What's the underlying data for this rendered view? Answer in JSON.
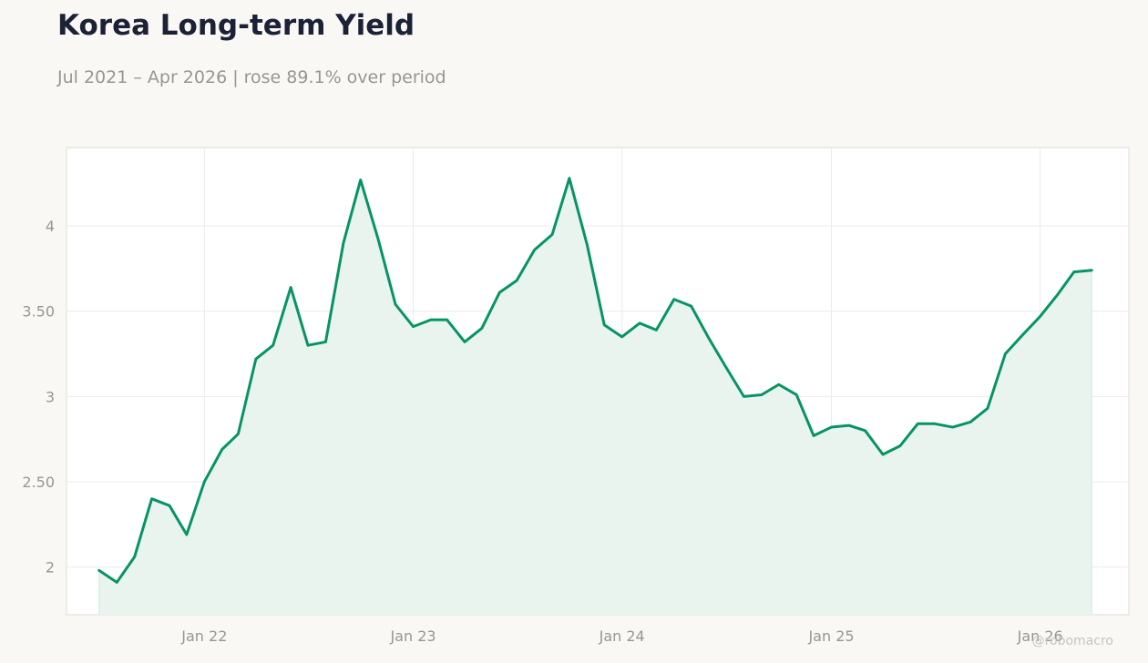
{
  "header": {
    "title": "Korea Long-term Yield",
    "subtitle": "Jul 2021 – Apr 2026 | rose 89.1% over period"
  },
  "watermark": "@robomacro",
  "colors": {
    "line": "#079465",
    "fill": "#e9f4ef",
    "grid": "#ebebeb",
    "frame": "#dddbd6",
    "background": "#f9f8f5",
    "plot_background": "#ffffff"
  },
  "chart_data": {
    "type": "area",
    "title": "Korea Long-term Yield",
    "subtitle": "Jul 2021 – Apr 2026 | rose 89.1% over period",
    "xlabel": "",
    "ylabel": "",
    "grid": true,
    "xlim": [
      "2021-05-05",
      "2026-06-05"
    ],
    "ylim": [
      1.72,
      4.46
    ],
    "x_ticks": [
      {
        "date": "2022-01-01",
        "label": "Jan 22"
      },
      {
        "date": "2023-01-01",
        "label": "Jan 23"
      },
      {
        "date": "2024-01-01",
        "label": "Jan 24"
      },
      {
        "date": "2025-01-01",
        "label": "Jan 25"
      },
      {
        "date": "2026-01-01",
        "label": "Jan 26"
      }
    ],
    "y_ticks": [
      {
        "value": 2,
        "label": "2"
      },
      {
        "value": 2.5,
        "label": "2.50"
      },
      {
        "value": 3,
        "label": "3"
      },
      {
        "value": 3.5,
        "label": "3.50"
      },
      {
        "value": 4,
        "label": "4"
      }
    ],
    "series": [
      {
        "x": [
          "2021-07",
          "2021-08",
          "2021-09",
          "2021-10",
          "2021-11",
          "2021-12",
          "2022-01",
          "2022-02",
          "2022-03",
          "2022-04",
          "2022-05",
          "2022-06",
          "2022-07",
          "2022-08",
          "2022-09",
          "2022-10",
          "2022-11",
          "2022-12",
          "2023-01",
          "2023-02",
          "2023-03",
          "2023-04",
          "2023-05",
          "2023-06",
          "2023-07",
          "2023-08",
          "2023-09",
          "2023-10",
          "2023-11",
          "2023-12",
          "2024-01",
          "2024-02",
          "2024-03",
          "2024-04",
          "2024-05",
          "2024-06",
          "2024-07",
          "2024-08",
          "2024-09",
          "2024-10",
          "2024-11",
          "2024-12",
          "2025-01",
          "2025-02",
          "2025-03",
          "2025-04",
          "2025-05",
          "2025-06",
          "2025-07",
          "2025-08",
          "2025-09",
          "2025-10",
          "2025-11",
          "2025-12",
          "2026-01",
          "2026-02",
          "2026-03",
          "2026-04"
        ],
        "values": [
          1.98,
          1.91,
          2.06,
          2.4,
          2.36,
          2.19,
          2.5,
          2.69,
          2.78,
          3.22,
          3.3,
          3.64,
          3.3,
          3.32,
          3.9,
          4.27,
          3.92,
          3.54,
          3.41,
          3.45,
          3.45,
          3.32,
          3.4,
          3.61,
          3.68,
          3.86,
          3.95,
          4.28,
          3.89,
          3.42,
          3.35,
          3.43,
          3.39,
          3.57,
          3.53,
          3.34,
          3.17,
          3.0,
          3.01,
          3.07,
          3.01,
          2.77,
          2.82,
          2.83,
          2.8,
          2.66,
          2.71,
          2.84,
          2.84,
          2.82,
          2.85,
          2.93,
          3.25,
          3.36,
          3.47,
          3.6,
          3.73,
          3.74
        ]
      }
    ]
  }
}
